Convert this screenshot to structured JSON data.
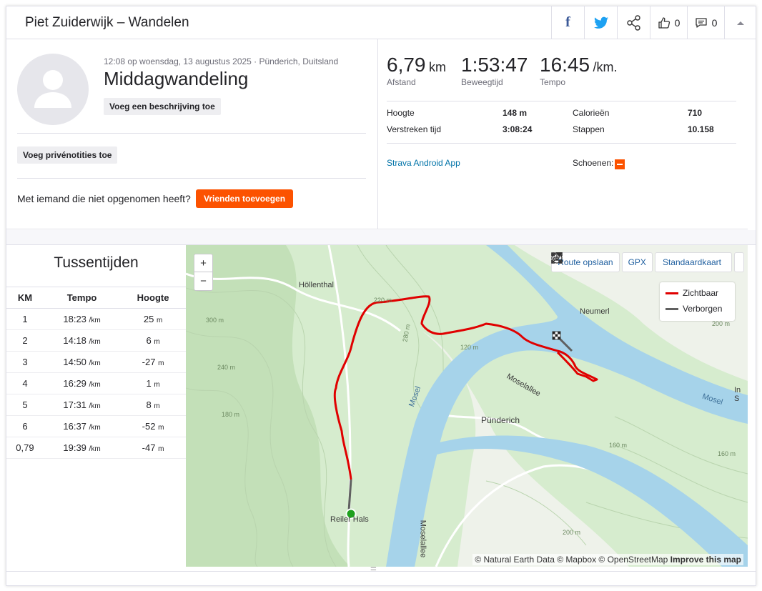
{
  "header": {
    "title": "Piet Zuiderwijk – Wandelen",
    "kudos_count": "0",
    "comment_count": "0",
    "facebook_icon": "facebook-icon",
    "twitter_icon": "twitter-icon",
    "share_icon": "share-icon",
    "kudos_icon": "thumbs-up-icon",
    "comment_icon": "comment-icon",
    "collapse_icon": "chevron-up-icon"
  },
  "activity": {
    "meta": "12:08 op woensdag, 13 augustus 2025 · Pünderich, Duitsland",
    "title": "Middagwandeling",
    "add_description": "Voeg een beschrijving toe",
    "add_private_notes": "Voeg privénotities toe",
    "missing_text": "Met iemand die niet opgenomen heeft?",
    "add_friends": "Vrienden toevoegen"
  },
  "stats": {
    "distance": {
      "value": "6,79",
      "unit": "km",
      "label": "Afstand"
    },
    "moving_time": {
      "value": "1:53:47",
      "label": "Beweegtijd"
    },
    "pace": {
      "value": "16:45",
      "unit": "/km.",
      "label": "Tempo"
    },
    "elevation_label": "Hoogte",
    "elevation": "148 m",
    "calories_label": "Calorieën",
    "calories": "710",
    "elapsed_label": "Verstreken tijd",
    "elapsed": "3:08:24",
    "steps_label": "Stappen",
    "steps": "10.158",
    "app": "Strava Android App",
    "shoes_label": "Schoenen:"
  },
  "splits": {
    "title": "Tussentijden",
    "columns": [
      "KM",
      "Tempo",
      "Hoogte"
    ],
    "pace_unit": "/km",
    "elev_unit": "m",
    "rows": [
      {
        "km": "1",
        "pace": "18:23",
        "elev": "25"
      },
      {
        "km": "2",
        "pace": "14:18",
        "elev": "6"
      },
      {
        "km": "3",
        "pace": "14:50",
        "elev": "-27"
      },
      {
        "km": "4",
        "pace": "16:29",
        "elev": "1"
      },
      {
        "km": "5",
        "pace": "17:31",
        "elev": "8"
      },
      {
        "km": "6",
        "pace": "16:37",
        "elev": "-52"
      },
      {
        "km": "0,79",
        "pace": "19:39",
        "elev": "-47"
      }
    ]
  },
  "map": {
    "zoom_in": "+",
    "zoom_out": "−",
    "save_route": "Route opslaan",
    "gpx": "GPX",
    "map_type": "Standaardkaart",
    "legend_visible": "Zichtbaar",
    "legend_hidden": "Verborgen",
    "color_visible": "#e00000",
    "color_hidden": "#606060",
    "attribution": "© Natural Earth Data © Mapbox © OpenStreetMap",
    "improve": "Improve this map",
    "places": {
      "hollenthal": "Höllenthal",
      "neumerl": "Neumerl",
      "punderich": "Pünderich",
      "reiler_hals": "Reiler Hals",
      "mosel1": "Mosel",
      "mosel2": "Mosel",
      "moselallee1": "Moselallee",
      "moselallee2": "Moselallee",
      "ins": "In S"
    },
    "contours": {
      "c220": "220 m",
      "c280": "280 m",
      "c300": "300 m",
      "c240": "240 m",
      "c180": "180 m",
      "c120": "120 m",
      "c160": "160 m",
      "c200": "200 m",
      "c160b": "160 m",
      "c200b": "200 m"
    }
  }
}
